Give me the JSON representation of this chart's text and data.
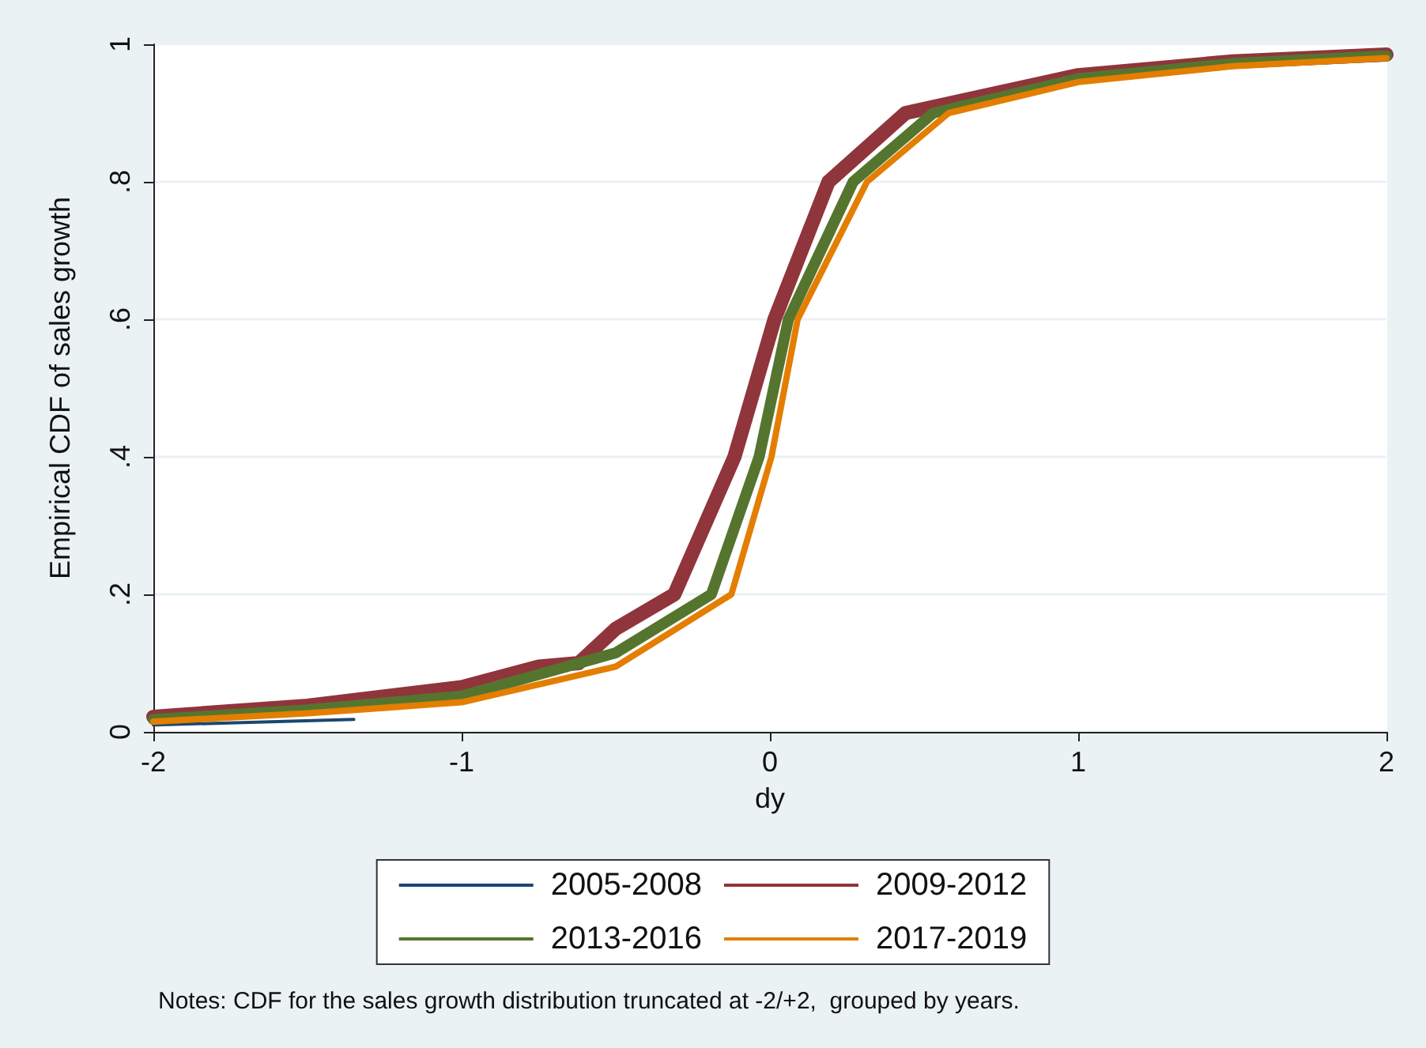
{
  "chart_data": {
    "type": "line",
    "xlabel": "dy",
    "ylabel": "Empirical CDF of sales growth",
    "annotations": [
      "Notes: CDF for the sales growth distribution truncated at -2/+2,  grouped by years."
    ],
    "xlim": [
      -2,
      2
    ],
    "xticks": [
      -2,
      -1,
      0,
      1,
      2
    ],
    "ylim": [
      0,
      1
    ],
    "yticks": [
      0,
      {
        "value": 0.2,
        "label": ".2"
      },
      {
        "value": 0.4,
        "label": ".4"
      },
      {
        "value": 0.6,
        "label": ".6"
      },
      {
        "value": 0.8,
        "label": ".8"
      },
      1
    ],
    "grid": "y",
    "legend": "bottom",
    "marker": "none",
    "line_style": "solid",
    "series": [
      {
        "name": "2005-2008",
        "color": "#1a476f",
        "x": [
          -2,
          -1.35
        ],
        "values": [
          0.01,
          0.018
        ]
      },
      {
        "name": "2009-2012",
        "color": "#90353b",
        "x": [
          -2,
          -1.5,
          -1,
          -0.75,
          -0.62,
          -0.5,
          -0.31,
          -0.115,
          0.015,
          0.19,
          0.44,
          1,
          1.5,
          2
        ],
        "values": [
          0.022,
          0.038,
          0.065,
          0.095,
          0.1,
          0.15,
          0.2,
          0.4,
          0.6,
          0.8,
          0.9,
          0.955,
          0.975,
          0.985
        ]
      },
      {
        "name": "2013-2016",
        "color": "#55752f",
        "x": [
          -2,
          -1.5,
          -1,
          -0.5,
          -0.19,
          -0.035,
          0.06,
          0.27,
          0.53,
          1,
          1.5,
          2
        ],
        "values": [
          0.018,
          0.032,
          0.052,
          0.115,
          0.2,
          0.4,
          0.6,
          0.8,
          0.9,
          0.95,
          0.972,
          0.983
        ]
      },
      {
        "name": "2017-2019",
        "color": "#e37e00",
        "x": [
          -2,
          -1.5,
          -1,
          -0.5,
          -0.125,
          0.005,
          0.09,
          0.315,
          0.58,
          1,
          1.5,
          2
        ],
        "values": [
          0.015,
          0.027,
          0.043,
          0.095,
          0.2,
          0.4,
          0.6,
          0.8,
          0.9,
          0.945,
          0.968,
          0.98
        ]
      }
    ]
  }
}
